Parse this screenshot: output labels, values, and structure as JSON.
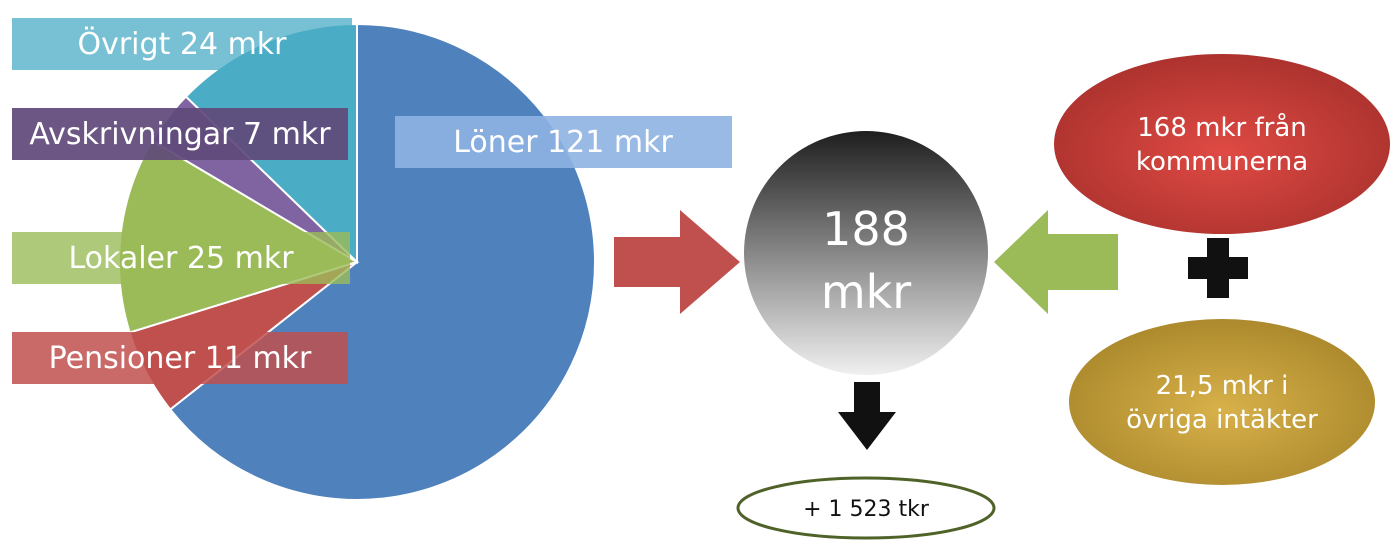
{
  "chart_data": {
    "type": "pie",
    "title": "",
    "slices": [
      {
        "label": "Löner 121 mkr",
        "value": 121,
        "color": "#4f81bd"
      },
      {
        "label": "Pensioner 11 mkr",
        "value": 11,
        "color": "#c0504d"
      },
      {
        "label": "Lokaler 25 mkr",
        "value": 25,
        "color": "#9bbb59"
      },
      {
        "label": "Avskrivningar 7 mkr",
        "value": 7,
        "color": "#8064a2"
      },
      {
        "label": "Övrigt 24 mkr",
        "value": 24,
        "color": "#4bacc6"
      }
    ]
  },
  "total": {
    "line1": "188",
    "line2": "mkr"
  },
  "income": {
    "municipal": {
      "line1": "168 mkr från",
      "line2": "kommunerna",
      "color": "#c0504d"
    },
    "other": {
      "line1": "21,5 mkr i",
      "line2": "övriga intäkter",
      "color": "#c9a132"
    }
  },
  "result": {
    "text": "+ 1 523 tkr"
  },
  "colors": {
    "arrow_red": "#c0504d",
    "arrow_green": "#9bbb59",
    "arrow_black": "#111111",
    "result_border": "#4f6228",
    "label_lon": "#8db3e2",
    "label_ovrigt": "#4bacc6",
    "label_avskr": "#5f497a",
    "label_lokaler": "#9bbb59",
    "label_pensioner": "#c0504d"
  }
}
